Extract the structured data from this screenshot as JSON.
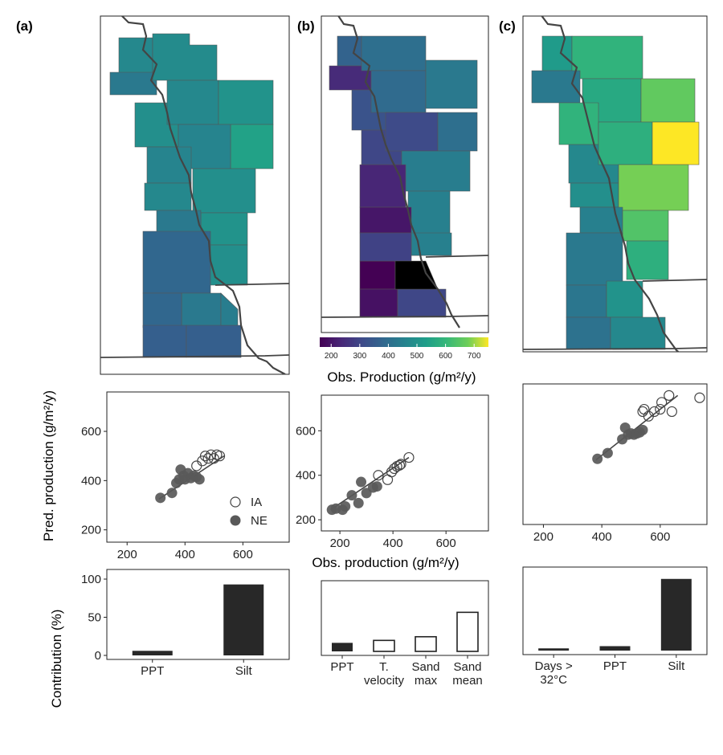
{
  "panels": [
    {
      "label": "(a)"
    },
    {
      "label": "(b)"
    },
    {
      "label": "(c)"
    }
  ],
  "colorbar": {
    "title": "Obs. Production (g/m²/y)",
    "ticks": [
      "200",
      "300",
      "400",
      "500",
      "600",
      "700"
    ],
    "range": [
      160,
      750
    ],
    "palette": "viridis"
  },
  "maps": [
    {
      "panel": "a",
      "values": [
        470,
        430,
        480,
        490,
        470,
        500,
        540,
        460,
        460,
        470,
        490,
        500,
        430,
        490,
        380,
        430,
        380,
        360,
        360,
        440
      ]
    },
    {
      "panel": "b",
      "values": [
        370,
        240,
        400,
        330,
        390,
        300,
        430,
        310,
        400,
        440,
        230,
        450,
        200,
        450,
        160,
        290,
        190,
        300
      ]
    },
    {
      "panel": "c",
      "values": [
        520,
        590,
        560,
        430,
        590,
        660,
        470,
        580,
        750,
        490,
        680,
        450,
        640,
        430,
        580,
        420,
        500,
        410,
        470
      ]
    }
  ],
  "chart_data": [
    {
      "panel": "a",
      "type": "scatter",
      "xlim": [
        130,
        760
      ],
      "ylim": [
        150,
        760
      ],
      "xticks": [
        200,
        400,
        600
      ],
      "yticks": [
        200,
        400,
        600
      ],
      "ylabel": "Pred. production (g/m²/y)",
      "legend": {
        "position": "bottom-right",
        "entries": [
          "IA",
          "NE"
        ]
      },
      "fit_line": {
        "x": [
          310,
          535
        ],
        "y": [
          325,
          500
        ]
      },
      "series": [
        {
          "name": "IA",
          "marker": "open-circle",
          "x": [
            440,
            460,
            470,
            480,
            490,
            500,
            510,
            520
          ],
          "y": [
            460,
            480,
            500,
            490,
            505,
            490,
            505,
            500
          ]
        },
        {
          "name": "NE",
          "marker": "filled-circle",
          "x": [
            315,
            355,
            370,
            380,
            385,
            395,
            400,
            410,
            420,
            430,
            440,
            450
          ],
          "y": [
            330,
            350,
            390,
            405,
            445,
            420,
            405,
            430,
            410,
            420,
            415,
            405
          ]
        }
      ]
    },
    {
      "panel": "b",
      "type": "scatter",
      "xlim": [
        130,
        760
      ],
      "ylim": [
        150,
        760
      ],
      "xticks": [
        200,
        400,
        600
      ],
      "yticks": [
        200,
        400,
        600
      ],
      "xlabel": "Obs. production (g/m²/y)",
      "fit_line": {
        "x": [
          165,
          460
        ],
        "y": [
          245,
          480
        ]
      },
      "series": [
        {
          "name": "IA",
          "marker": "open-circle",
          "x": [
            345,
            380,
            395,
            405,
            415,
            425,
            430,
            460
          ],
          "y": [
            400,
            380,
            415,
            430,
            440,
            445,
            450,
            480
          ]
        },
        {
          "name": "NE",
          "marker": "filled-circle",
          "x": [
            170,
            185,
            210,
            220,
            245,
            270,
            280,
            300,
            325,
            340
          ],
          "y": [
            245,
            250,
            245,
            260,
            310,
            275,
            370,
            320,
            345,
            350
          ]
        }
      ]
    },
    {
      "panel": "c",
      "type": "scatter",
      "xlim": [
        130,
        760
      ],
      "ylim": [
        150,
        760
      ],
      "xticks": [
        200,
        400,
        600
      ],
      "yticks": [],
      "fit_line": {
        "x": [
          380,
          660
        ],
        "y": [
          430,
          710
        ]
      },
      "series": [
        {
          "name": "IA",
          "marker": "open-circle",
          "x": [
            540,
            545,
            560,
            580,
            600,
            605,
            630,
            640,
            735
          ],
          "y": [
            640,
            650,
            620,
            640,
            650,
            680,
            710,
            640,
            700
          ]
        },
        {
          "name": "NE",
          "marker": "filled-circle",
          "x": [
            385,
            420,
            470,
            480,
            490,
            500,
            510,
            520,
            530,
            540
          ],
          "y": [
            435,
            460,
            520,
            570,
            540,
            545,
            540,
            545,
            550,
            560
          ]
        }
      ]
    },
    {
      "panel": "a",
      "type": "bar",
      "ylim": [
        0,
        100
      ],
      "yticks": [
        0,
        50,
        100
      ],
      "ylabel": "Contribution (%)",
      "categories": [
        "PPT",
        "Silt"
      ],
      "values": [
        6,
        93
      ],
      "fills": [
        "#282828",
        "#282828"
      ]
    },
    {
      "panel": "b",
      "type": "bar",
      "ylim": [
        0,
        100
      ],
      "yticks": [],
      "categories": [
        "PPT",
        "T.\nvelocity",
        "Sand\nmax",
        "Sand\nmean"
      ],
      "values": [
        14,
        18,
        24,
        64
      ],
      "fills": [
        "#282828",
        "#ffffff",
        "#ffffff",
        "#ffffff"
      ]
    },
    {
      "panel": "c",
      "type": "bar",
      "ylim": [
        0,
        100
      ],
      "yticks": [],
      "categories": [
        "Days >\n32°C",
        "PPT",
        "Silt"
      ],
      "values": [
        3,
        6,
        97
      ],
      "fills": [
        "#282828",
        "#282828",
        "#282828"
      ]
    }
  ]
}
